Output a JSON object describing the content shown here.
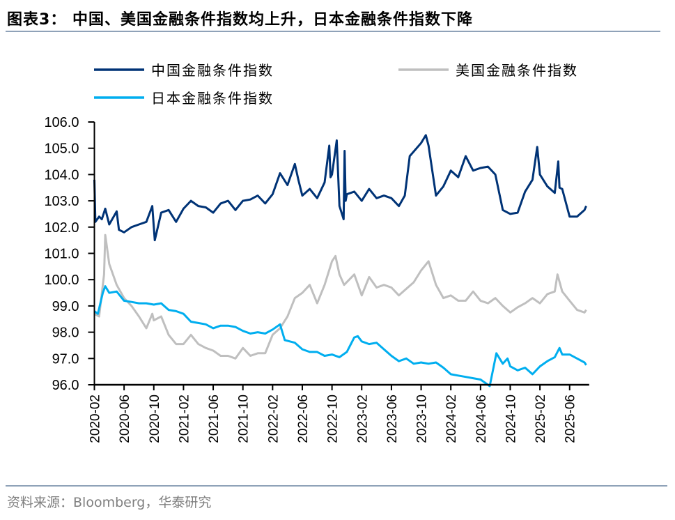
{
  "header": {
    "title": "图表3：  中国、美国金融条件指数均上升，日本金融条件指数下降"
  },
  "footer": {
    "source": "资料来源：Bloomberg，华泰研究"
  },
  "chart_data": {
    "type": "line",
    "title": "",
    "xlabel": "",
    "ylabel": "",
    "ylim": [
      96.0,
      106.0
    ],
    "yticks": [
      "96.0",
      "97.0",
      "98.0",
      "99.0",
      "100.0",
      "101.0",
      "102.0",
      "103.0",
      "104.0",
      "105.0",
      "106.0"
    ],
    "xticks": [
      "2020-02",
      "2020-06",
      "2020-10",
      "2021-02",
      "2021-06",
      "2021-10",
      "2022-02",
      "2022-06",
      "2022-10",
      "2023-02",
      "2023-06",
      "2023-10",
      "2024-02",
      "2024-06",
      "2024-10",
      "2025-02",
      "2025-06"
    ],
    "xlim": [
      "2020-02-01",
      "2025-08-20"
    ],
    "grid": false,
    "legend_position": "top",
    "series": [
      {
        "name": "中国金融条件指数",
        "color": "#003376",
        "points": [
          [
            "2020-02-01",
            103.8
          ],
          [
            "2020-02-05",
            102.2
          ],
          [
            "2020-02-20",
            102.4
          ],
          [
            "2020-03-01",
            102.3
          ],
          [
            "2020-03-15",
            102.7
          ],
          [
            "2020-04-01",
            102.1
          ],
          [
            "2020-05-01",
            102.6
          ],
          [
            "2020-05-10",
            101.9
          ],
          [
            "2020-06-01",
            101.8
          ],
          [
            "2020-07-01",
            102.0
          ],
          [
            "2020-08-01",
            102.1
          ],
          [
            "2020-09-01",
            102.2
          ],
          [
            "2020-09-25",
            102.8
          ],
          [
            "2020-10-05",
            101.5
          ],
          [
            "2020-11-01",
            102.55
          ],
          [
            "2020-12-01",
            102.65
          ],
          [
            "2021-01-01",
            102.2
          ],
          [
            "2021-02-01",
            102.7
          ],
          [
            "2021-03-01",
            103.0
          ],
          [
            "2021-04-01",
            102.8
          ],
          [
            "2021-05-01",
            102.75
          ],
          [
            "2021-06-01",
            102.55
          ],
          [
            "2021-07-01",
            102.9
          ],
          [
            "2021-08-01",
            103.0
          ],
          [
            "2021-09-01",
            102.65
          ],
          [
            "2021-10-01",
            103.0
          ],
          [
            "2021-11-01",
            103.05
          ],
          [
            "2021-12-01",
            103.2
          ],
          [
            "2022-01-01",
            102.9
          ],
          [
            "2022-02-01",
            103.25
          ],
          [
            "2022-03-01",
            104.05
          ],
          [
            "2022-04-01",
            103.6
          ],
          [
            "2022-05-01",
            104.4
          ],
          [
            "2022-05-15",
            103.8
          ],
          [
            "2022-06-01",
            103.2
          ],
          [
            "2022-07-01",
            103.45
          ],
          [
            "2022-08-01",
            103.1
          ],
          [
            "2022-09-01",
            103.7
          ],
          [
            "2022-09-20",
            105.1
          ],
          [
            "2022-09-25",
            103.9
          ],
          [
            "2022-10-01",
            104.0
          ],
          [
            "2022-10-20",
            105.3
          ],
          [
            "2022-10-28",
            103.5
          ],
          [
            "2022-11-01",
            102.8
          ],
          [
            "2022-11-18",
            102.3
          ],
          [
            "2022-11-22",
            104.9
          ],
          [
            "2022-11-26",
            103.0
          ],
          [
            "2022-12-01",
            103.25
          ],
          [
            "2023-01-01",
            103.35
          ],
          [
            "2023-02-01",
            103.0
          ],
          [
            "2023-03-01",
            103.45
          ],
          [
            "2023-04-01",
            103.1
          ],
          [
            "2023-05-01",
            103.2
          ],
          [
            "2023-06-01",
            103.1
          ],
          [
            "2023-07-01",
            102.8
          ],
          [
            "2023-07-25",
            103.2
          ],
          [
            "2023-08-15",
            104.7
          ],
          [
            "2023-10-01",
            105.2
          ],
          [
            "2023-10-20",
            105.5
          ],
          [
            "2023-11-01",
            105.1
          ],
          [
            "2023-12-01",
            103.2
          ],
          [
            "2024-01-01",
            103.55
          ],
          [
            "2024-02-01",
            104.15
          ],
          [
            "2024-03-01",
            103.9
          ],
          [
            "2024-04-01",
            104.7
          ],
          [
            "2024-05-01",
            104.15
          ],
          [
            "2024-06-01",
            104.25
          ],
          [
            "2024-07-01",
            104.3
          ],
          [
            "2024-08-01",
            104.0
          ],
          [
            "2024-09-01",
            102.65
          ],
          [
            "2024-10-01",
            102.5
          ],
          [
            "2024-11-01",
            102.55
          ],
          [
            "2024-12-01",
            103.35
          ],
          [
            "2025-01-01",
            103.8
          ],
          [
            "2025-01-20",
            105.05
          ],
          [
            "2025-02-01",
            104.0
          ],
          [
            "2025-03-01",
            103.55
          ],
          [
            "2025-04-01",
            103.3
          ],
          [
            "2025-04-15",
            104.5
          ],
          [
            "2025-04-20",
            103.5
          ],
          [
            "2025-05-01",
            103.45
          ],
          [
            "2025-06-01",
            102.4
          ],
          [
            "2025-07-01",
            102.4
          ],
          [
            "2025-08-01",
            102.65
          ],
          [
            "2025-08-08",
            102.8
          ]
        ]
      },
      {
        "name": "美国金融条件指数",
        "color": "#bfbfbf",
        "points": [
          [
            "2020-02-01",
            98.7
          ],
          [
            "2020-02-20",
            98.6
          ],
          [
            "2020-03-10",
            100.2
          ],
          [
            "2020-03-15",
            101.7
          ],
          [
            "2020-04-01",
            100.6
          ],
          [
            "2020-05-01",
            99.8
          ],
          [
            "2020-06-01",
            99.3
          ],
          [
            "2020-07-01",
            99.0
          ],
          [
            "2020-08-01",
            98.6
          ],
          [
            "2020-09-01",
            98.15
          ],
          [
            "2020-09-25",
            98.7
          ],
          [
            "2020-10-01",
            98.45
          ],
          [
            "2020-11-01",
            98.6
          ],
          [
            "2020-12-01",
            97.9
          ],
          [
            "2021-01-01",
            97.55
          ],
          [
            "2021-02-01",
            97.55
          ],
          [
            "2021-03-01",
            97.9
          ],
          [
            "2021-04-01",
            97.55
          ],
          [
            "2021-05-01",
            97.4
          ],
          [
            "2021-06-01",
            97.3
          ],
          [
            "2021-07-01",
            97.1
          ],
          [
            "2021-08-01",
            97.1
          ],
          [
            "2021-09-01",
            97.0
          ],
          [
            "2021-10-01",
            97.4
          ],
          [
            "2021-11-01",
            97.1
          ],
          [
            "2021-12-01",
            97.2
          ],
          [
            "2022-01-01",
            97.2
          ],
          [
            "2022-02-01",
            97.9
          ],
          [
            "2022-03-01",
            98.15
          ],
          [
            "2022-04-01",
            98.6
          ],
          [
            "2022-05-01",
            99.3
          ],
          [
            "2022-06-01",
            99.5
          ],
          [
            "2022-07-01",
            99.8
          ],
          [
            "2022-08-01",
            99.1
          ],
          [
            "2022-09-01",
            99.8
          ],
          [
            "2022-10-01",
            100.7
          ],
          [
            "2022-10-15",
            100.9
          ],
          [
            "2022-11-01",
            100.2
          ],
          [
            "2022-11-20",
            99.8
          ],
          [
            "2023-01-01",
            100.2
          ],
          [
            "2023-02-01",
            99.4
          ],
          [
            "2023-03-01",
            100.1
          ],
          [
            "2023-04-01",
            99.7
          ],
          [
            "2023-05-01",
            99.8
          ],
          [
            "2023-06-01",
            99.7
          ],
          [
            "2023-07-01",
            99.4
          ],
          [
            "2023-08-01",
            99.65
          ],
          [
            "2023-09-01",
            99.9
          ],
          [
            "2023-10-01",
            100.35
          ],
          [
            "2023-11-01",
            100.7
          ],
          [
            "2023-12-01",
            99.8
          ],
          [
            "2024-01-01",
            99.3
          ],
          [
            "2024-02-01",
            99.4
          ],
          [
            "2024-03-01",
            99.2
          ],
          [
            "2024-04-01",
            99.2
          ],
          [
            "2024-05-01",
            99.55
          ],
          [
            "2024-06-01",
            99.2
          ],
          [
            "2024-07-01",
            99.1
          ],
          [
            "2024-08-01",
            99.3
          ],
          [
            "2024-09-01",
            99.0
          ],
          [
            "2024-10-01",
            98.75
          ],
          [
            "2024-11-01",
            98.95
          ],
          [
            "2024-12-01",
            99.1
          ],
          [
            "2025-01-01",
            99.3
          ],
          [
            "2025-02-01",
            99.1
          ],
          [
            "2025-03-01",
            99.45
          ],
          [
            "2025-04-01",
            99.55
          ],
          [
            "2025-04-12",
            100.2
          ],
          [
            "2025-05-01",
            99.55
          ],
          [
            "2025-06-01",
            99.2
          ],
          [
            "2025-07-01",
            98.85
          ],
          [
            "2025-08-01",
            98.75
          ],
          [
            "2025-08-08",
            98.85
          ]
        ]
      },
      {
        "name": "日本金融条件指数",
        "color": "#00aeef",
        "points": [
          [
            "2020-02-01",
            98.8
          ],
          [
            "2020-02-15",
            98.7
          ],
          [
            "2020-03-05",
            99.5
          ],
          [
            "2020-03-15",
            99.75
          ],
          [
            "2020-04-01",
            99.5
          ],
          [
            "2020-05-01",
            99.55
          ],
          [
            "2020-06-01",
            99.2
          ],
          [
            "2020-07-01",
            99.15
          ],
          [
            "2020-08-01",
            99.1
          ],
          [
            "2020-09-01",
            99.1
          ],
          [
            "2020-10-01",
            99.05
          ],
          [
            "2020-11-01",
            99.1
          ],
          [
            "2020-12-01",
            98.85
          ],
          [
            "2021-01-01",
            98.8
          ],
          [
            "2021-02-01",
            98.7
          ],
          [
            "2021-03-01",
            98.4
          ],
          [
            "2021-04-01",
            98.35
          ],
          [
            "2021-05-01",
            98.3
          ],
          [
            "2021-06-01",
            98.15
          ],
          [
            "2021-07-01",
            98.25
          ],
          [
            "2021-08-01",
            98.25
          ],
          [
            "2021-09-01",
            98.2
          ],
          [
            "2021-10-01",
            98.05
          ],
          [
            "2021-11-01",
            97.95
          ],
          [
            "2021-12-01",
            98.0
          ],
          [
            "2022-01-01",
            97.95
          ],
          [
            "2022-02-01",
            98.1
          ],
          [
            "2022-03-01",
            98.3
          ],
          [
            "2022-03-20",
            97.7
          ],
          [
            "2022-05-01",
            97.6
          ],
          [
            "2022-06-01",
            97.35
          ],
          [
            "2022-07-01",
            97.25
          ],
          [
            "2022-08-01",
            97.25
          ],
          [
            "2022-09-01",
            97.1
          ],
          [
            "2022-10-01",
            97.15
          ],
          [
            "2022-11-01",
            97.05
          ],
          [
            "2022-12-01",
            97.25
          ],
          [
            "2023-01-01",
            97.8
          ],
          [
            "2023-01-15",
            97.85
          ],
          [
            "2023-02-01",
            97.65
          ],
          [
            "2023-03-01",
            97.55
          ],
          [
            "2023-04-01",
            97.6
          ],
          [
            "2023-05-01",
            97.35
          ],
          [
            "2023-06-01",
            97.1
          ],
          [
            "2023-07-01",
            96.9
          ],
          [
            "2023-08-01",
            97.0
          ],
          [
            "2023-09-01",
            96.8
          ],
          [
            "2023-10-01",
            96.85
          ],
          [
            "2023-11-01",
            96.8
          ],
          [
            "2023-12-01",
            96.85
          ],
          [
            "2024-01-01",
            96.65
          ],
          [
            "2024-02-01",
            96.4
          ],
          [
            "2024-03-01",
            96.35
          ],
          [
            "2024-04-01",
            96.3
          ],
          [
            "2024-05-01",
            96.25
          ],
          [
            "2024-06-01",
            96.2
          ],
          [
            "2024-07-01",
            96.0
          ],
          [
            "2024-07-08",
            95.95
          ],
          [
            "2024-08-05",
            97.2
          ],
          [
            "2024-09-01",
            96.8
          ],
          [
            "2024-09-20",
            97.0
          ],
          [
            "2024-10-01",
            96.7
          ],
          [
            "2024-11-01",
            96.55
          ],
          [
            "2024-12-01",
            96.65
          ],
          [
            "2025-01-01",
            96.4
          ],
          [
            "2025-02-01",
            96.7
          ],
          [
            "2025-03-01",
            96.9
          ],
          [
            "2025-04-01",
            97.05
          ],
          [
            "2025-04-20",
            97.4
          ],
          [
            "2025-05-01",
            97.15
          ],
          [
            "2025-06-01",
            97.15
          ],
          [
            "2025-07-01",
            97.0
          ],
          [
            "2025-08-01",
            96.85
          ],
          [
            "2025-08-08",
            96.75
          ]
        ]
      }
    ]
  }
}
